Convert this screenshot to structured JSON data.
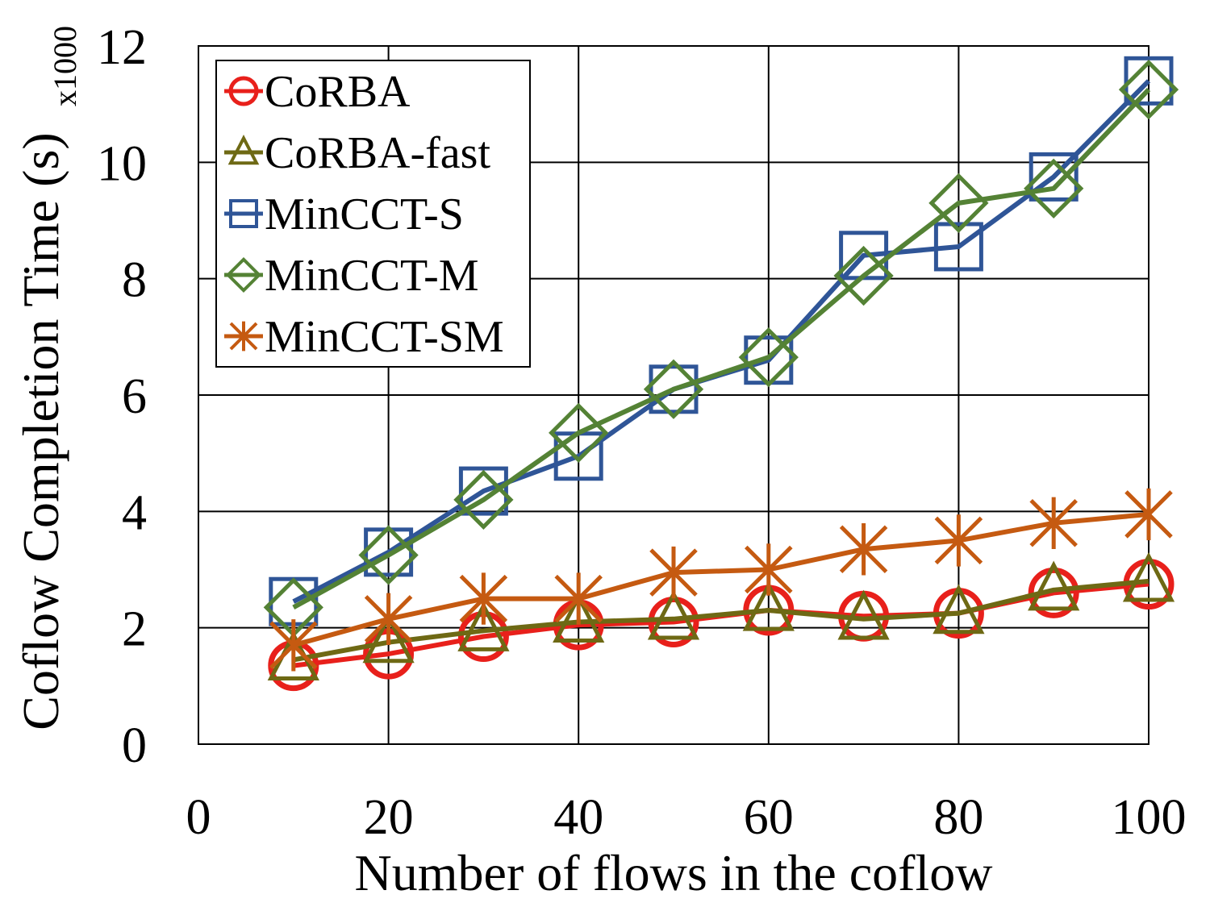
{
  "chart_data": {
    "type": "line",
    "title": "",
    "xlabel": "Number of flows in the coflow",
    "ylabel": "Coflow Completion Time (s)",
    "y_scale_note": "x1000",
    "xlim": [
      0,
      100
    ],
    "ylim": [
      0,
      12
    ],
    "x_ticks": [
      "0",
      "20",
      "40",
      "60",
      "80",
      "100"
    ],
    "y_ticks": [
      "0",
      "2",
      "4",
      "6",
      "8",
      "10",
      "12"
    ],
    "grid": true,
    "legend_position": "top-left",
    "x": [
      10,
      20,
      30,
      40,
      50,
      60,
      70,
      80,
      90,
      100
    ],
    "series": [
      {
        "name": "CoRBA",
        "color": "#e8201b",
        "marker": "circle",
        "values": [
          1.35,
          1.55,
          1.85,
          2.05,
          2.1,
          2.3,
          2.2,
          2.25,
          2.6,
          2.75
        ]
      },
      {
        "name": "CoRBA-fast",
        "color": "#6e6914",
        "marker": "triangle",
        "values": [
          1.45,
          1.75,
          1.95,
          2.1,
          2.15,
          2.3,
          2.15,
          2.25,
          2.65,
          2.8
        ]
      },
      {
        "name": "MinCCT-S",
        "color": "#2f5597",
        "marker": "square",
        "values": [
          2.45,
          3.3,
          4.35,
          4.95,
          6.1,
          6.6,
          8.4,
          8.55,
          9.75,
          11.4
        ]
      },
      {
        "name": "MinCCT-M",
        "color": "#548235",
        "marker": "diamond",
        "values": [
          2.35,
          3.25,
          4.2,
          5.35,
          6.1,
          6.65,
          8.05,
          9.3,
          9.55,
          11.25
        ]
      },
      {
        "name": "MinCCT-SM",
        "color": "#c55a11",
        "marker": "asterisk",
        "values": [
          1.7,
          2.15,
          2.5,
          2.5,
          2.95,
          3.0,
          3.35,
          3.5,
          3.8,
          3.95
        ]
      }
    ]
  }
}
